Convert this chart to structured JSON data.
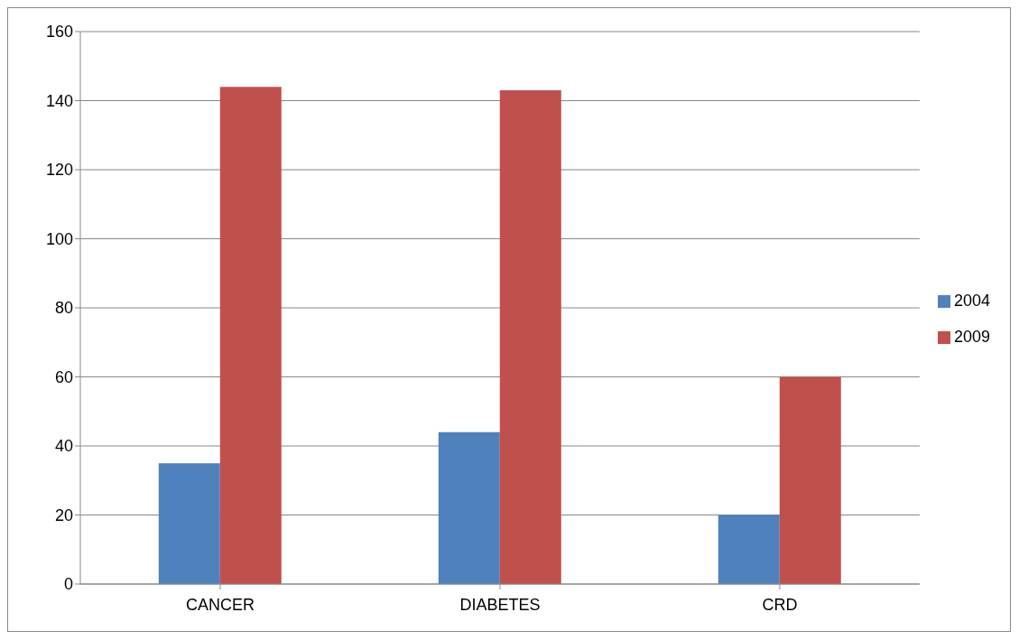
{
  "chart_data": {
    "type": "bar",
    "categories": [
      "CANCER",
      "DIABETES",
      "CRD"
    ],
    "series": [
      {
        "name": "2004",
        "color": "#4f81bd",
        "values": [
          35,
          44,
          20
        ]
      },
      {
        "name": "2009",
        "color": "#c0504d",
        "values": [
          144,
          143,
          60
        ]
      }
    ],
    "ylim": [
      0,
      160
    ],
    "yticks": [
      0,
      20,
      40,
      60,
      80,
      100,
      120,
      140,
      160
    ],
    "grid": "y",
    "legend": "right"
  }
}
